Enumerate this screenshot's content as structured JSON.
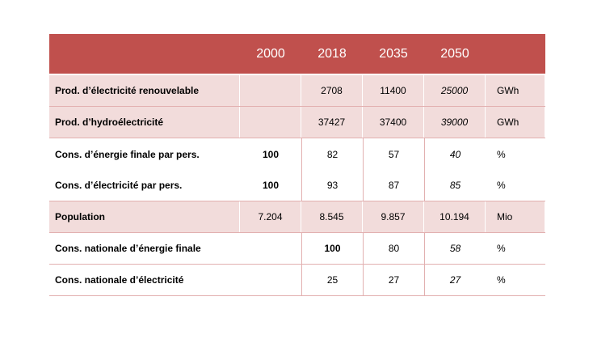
{
  "table": {
    "header": {
      "label": "",
      "y2000": "2000",
      "y2018": "2018",
      "y2035": "2035",
      "y2050": "2050",
      "unit": ""
    },
    "rows": [
      {
        "label": "Prod. d’électricité renouvelable",
        "y2000": "",
        "y2018": "2708",
        "y2035": "11400",
        "y2050": "25000",
        "unit": "GWh"
      },
      {
        "label": "Prod. d’hydroélectricité",
        "y2000": "",
        "y2018": "37427",
        "y2035": "37400",
        "y2050": "39000",
        "unit": "GWh"
      },
      {
        "label": "Cons. d’énergie finale par pers.",
        "y2000": "100",
        "y2018": "82",
        "y2035": "57",
        "y2050": "40",
        "unit": "%"
      },
      {
        "label": "Cons. d’électricité par pers.",
        "y2000": "100",
        "y2018": "93",
        "y2035": "87",
        "y2050": "85",
        "unit": "%"
      },
      {
        "label": "Population",
        "y2000": "7.204",
        "y2018": "8.545",
        "y2035": "9.857",
        "y2050": "10.194",
        "unit": "Mio"
      },
      {
        "label": "Cons. nationale d’énergie finale",
        "y2000": "",
        "y2018": "100",
        "y2035": "80",
        "y2050": "58",
        "unit": "%"
      },
      {
        "label": "Cons. nationale d’électricité",
        "y2000": "",
        "y2018": "25",
        "y2035": "27",
        "y2050": "27",
        "unit": "%"
      }
    ]
  },
  "colors": {
    "header_bg": "#c0504d",
    "shaded_row_bg": "#f2dcdb",
    "grid_line": "#e2b0b0"
  }
}
